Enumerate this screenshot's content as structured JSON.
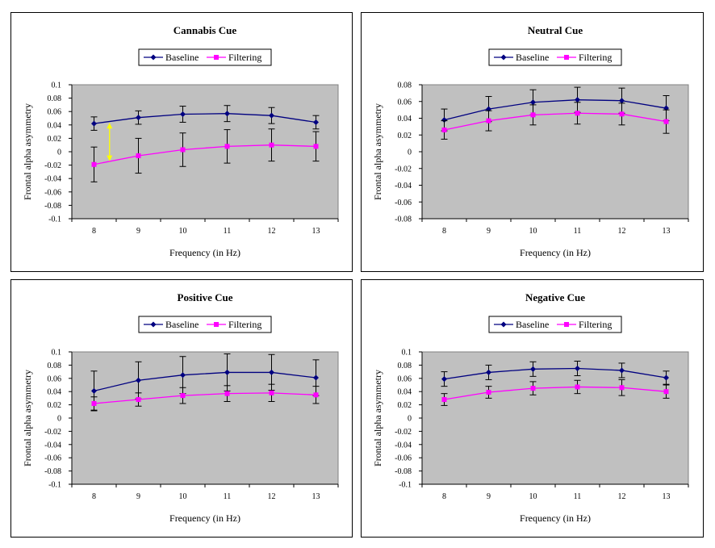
{
  "chart_data": [
    {
      "type": "line",
      "title": "Cannabis Cue",
      "xlabel": "Frequency (in Hz)",
      "ylabel": "Frontal alpha asymmetry",
      "categories": [
        "8",
        "9",
        "10",
        "11",
        "12",
        "13"
      ],
      "ylim": [
        -0.1,
        0.1
      ],
      "ytick_labels": [
        "0.1",
        "0.08",
        "0.06",
        "0.04",
        "0.02",
        "0",
        "-0.02",
        "-0.04",
        "-0.06",
        "-0.08",
        "-0.1"
      ],
      "legend_position": "top-center",
      "series": [
        {
          "name": "Baseline",
          "color": "#000080",
          "marker": "diamond",
          "values": [
            0.042,
            0.051,
            0.056,
            0.057,
            0.054,
            0.044
          ],
          "errors": [
            0.01,
            0.01,
            0.012,
            0.012,
            0.012,
            0.01
          ]
        },
        {
          "name": "Filtering",
          "color": "#ff00ff",
          "marker": "square",
          "values": [
            -0.019,
            -0.006,
            0.003,
            0.008,
            0.01,
            0.008
          ],
          "errors": [
            0.026,
            0.026,
            0.025,
            0.025,
            0.024,
            0.022
          ]
        }
      ],
      "annotation": {
        "type": "double-arrow",
        "color": "#ffff00",
        "x_between": 0.35,
        "from": -0.014,
        "to": 0.043
      }
    },
    {
      "type": "line",
      "title": "Neutral Cue",
      "xlabel": "Frequency (in Hz)",
      "ylabel": "Frontal alpha asymmetry",
      "categories": [
        "8",
        "9",
        "10",
        "11",
        "12",
        "13"
      ],
      "ylim": [
        -0.08,
        0.08
      ],
      "ytick_labels": [
        "0.08",
        "0.06",
        "0.04",
        "0.02",
        "0",
        "-0.02",
        "-0.04",
        "-0.06",
        "-0.08"
      ],
      "legend_position": "top-center",
      "series": [
        {
          "name": "Baseline",
          "color": "#000080",
          "marker": "diamond",
          "values": [
            0.038,
            0.051,
            0.059,
            0.062,
            0.061,
            0.052
          ],
          "errors": [
            0.013,
            0.015,
            0.015,
            0.015,
            0.015,
            0.015
          ]
        },
        {
          "name": "Filtering",
          "color": "#ff00ff",
          "marker": "square",
          "values": [
            0.026,
            0.037,
            0.044,
            0.046,
            0.045,
            0.036
          ],
          "errors": [
            0.011,
            0.012,
            0.012,
            0.013,
            0.013,
            0.014
          ]
        }
      ]
    },
    {
      "type": "line",
      "title": "Positive Cue",
      "xlabel": "Frequency (in Hz)",
      "ylabel": "Frontal alpha asymmetry",
      "categories": [
        "8",
        "9",
        "10",
        "11",
        "12",
        "13"
      ],
      "ylim": [
        -0.1,
        0.1
      ],
      "ytick_labels": [
        "0.1",
        "0.08",
        "0.06",
        "0.04",
        "0.02",
        "0",
        "-0.02",
        "-0.04",
        "-0.06",
        "-0.08",
        "-0.1"
      ],
      "legend_position": "top-center",
      "series": [
        {
          "name": "Baseline",
          "color": "#000080",
          "marker": "diamond",
          "values": [
            0.041,
            0.057,
            0.065,
            0.069,
            0.069,
            0.061
          ],
          "errors": [
            0.03,
            0.028,
            0.028,
            0.028,
            0.027,
            0.027
          ]
        },
        {
          "name": "Filtering",
          "color": "#ff00ff",
          "marker": "square",
          "values": [
            0.022,
            0.028,
            0.034,
            0.037,
            0.038,
            0.035
          ],
          "errors": [
            0.01,
            0.01,
            0.012,
            0.012,
            0.013,
            0.013
          ]
        }
      ]
    },
    {
      "type": "line",
      "title": "Negative Cue",
      "xlabel": "Frequency (in Hz)",
      "ylabel": "Frontal alpha asymmetry",
      "categories": [
        "8",
        "9",
        "10",
        "11",
        "12",
        "13"
      ],
      "ylim": [
        -0.1,
        0.1
      ],
      "ytick_labels": [
        "0.1",
        "0.08",
        "0.06",
        "0.04",
        "0.02",
        "0",
        "-0.02",
        "-0.04",
        "-0.06",
        "-0.08",
        "-0.1"
      ],
      "legend_position": "top-center",
      "series": [
        {
          "name": "Baseline",
          "color": "#000080",
          "marker": "diamond",
          "values": [
            0.059,
            0.069,
            0.074,
            0.075,
            0.072,
            0.061
          ],
          "errors": [
            0.011,
            0.011,
            0.011,
            0.011,
            0.011,
            0.01
          ]
        },
        {
          "name": "Filtering",
          "color": "#ff00ff",
          "marker": "square",
          "values": [
            0.028,
            0.039,
            0.045,
            0.047,
            0.046,
            0.04
          ],
          "errors": [
            0.009,
            0.009,
            0.01,
            0.01,
            0.012,
            0.01
          ]
        }
      ]
    }
  ]
}
